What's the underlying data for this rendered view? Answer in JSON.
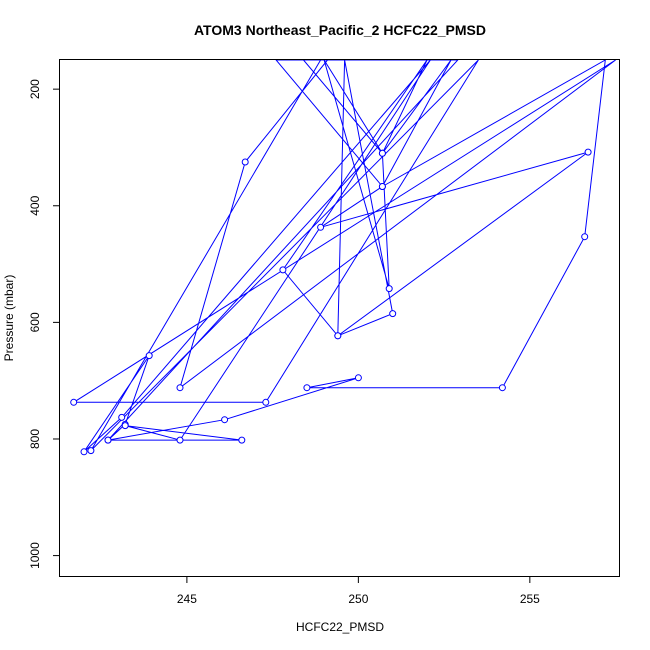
{
  "chart_data": {
    "type": "line",
    "title": "ATOM3 Northeast_Pacific_2 HCFC22_PMSD",
    "xlabel": "HCFC22_PMSD",
    "ylabel": "Pressure (mbar)",
    "xlim": [
      241.3,
      257.6
    ],
    "ylim": [
      1035,
      150
    ],
    "y_reversed": true,
    "x_ticks": [
      245,
      250,
      255
    ],
    "y_ticks": [
      200,
      400,
      600,
      800,
      1000
    ],
    "grid": false,
    "color": "#0000ff",
    "series": [
      {
        "x": [
          249.1,
          246.7,
          244.8,
          257.5,
          241.7,
          247.3,
          253.5,
          242.2,
          248.9,
          252.9,
          242.7,
          243.2,
          243.9,
          242.0,
          243.1,
          252.1,
          244.8,
          243.2,
          246.6,
          242.7,
          246.1,
          250.0,
          248.5,
          254.2,
          256.6,
          257.2,
          250.7,
          252.7,
          250.7,
          248.4,
          250.7,
          250.9,
          249.0,
          250.7,
          252.0,
          247.8,
          249.4,
          251.0,
          249.6,
          249.4,
          256.7,
          248.9,
          250.7,
          247.6,
          251.7
        ],
        "y": [
          150,
          325,
          712,
          150,
          737,
          737,
          150,
          820,
          150,
          150,
          802,
          775,
          657,
          822,
          763,
          150,
          802,
          777,
          802,
          802,
          767,
          695,
          712,
          712,
          453,
          150,
          367,
          150,
          310,
          150,
          310,
          542,
          150,
          310,
          150,
          510,
          623,
          585,
          150,
          623,
          308,
          437,
          367,
          150,
          150
        ]
      }
    ]
  }
}
